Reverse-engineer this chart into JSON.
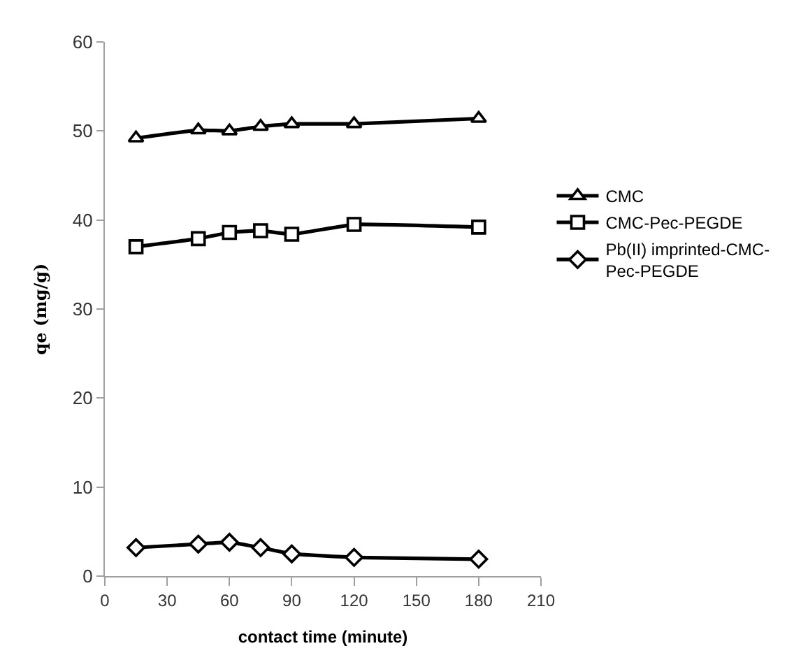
{
  "chart_data": {
    "type": "line",
    "xlabel": "contact time (minute)",
    "ylabel": "qe (mg/g)",
    "x": [
      15,
      45,
      60,
      75,
      90,
      120,
      180
    ],
    "series": [
      {
        "name": "CMC",
        "color": "#000000",
        "marker": "triangle",
        "values": [
          49.2,
          50.1,
          50.0,
          50.5,
          50.8,
          50.8,
          51.4
        ]
      },
      {
        "name": "CMC-Pec-PEGDE",
        "color": "#000000",
        "marker": "square",
        "values": [
          37.0,
          37.9,
          38.6,
          38.8,
          38.4,
          39.5,
          39.2
        ]
      },
      {
        "name": "Pb(II) imprinted-CMC-Pec-PEGDE",
        "color": "#000000",
        "marker": "diamond",
        "values": [
          3.2,
          3.6,
          3.8,
          3.2,
          2.5,
          2.1,
          1.9
        ]
      }
    ],
    "xlim": [
      0,
      210
    ],
    "xticks": [
      0,
      30,
      60,
      90,
      120,
      150,
      180,
      210
    ],
    "ylim": [
      0,
      60
    ],
    "yticks": [
      0,
      10,
      20,
      30,
      40,
      50,
      60
    ],
    "grid": false,
    "legend": "right",
    "line_style": "solid"
  }
}
